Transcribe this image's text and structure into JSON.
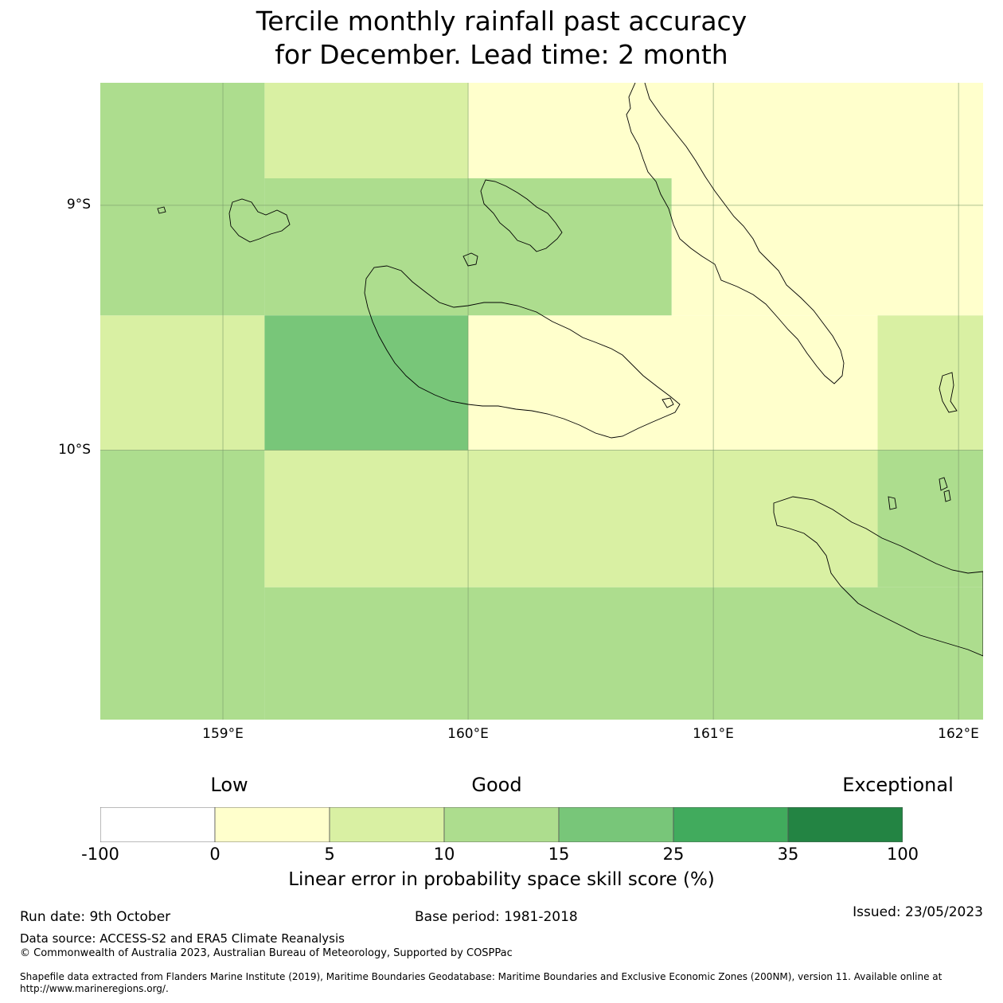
{
  "title": {
    "line1": "Tercile monthly rainfall past accuracy",
    "line2": "for December. Lead time: 2 month"
  },
  "map": {
    "lat_range": [
      -8.5,
      -11.1
    ],
    "lon_range": [
      158.5,
      162.1
    ],
    "lat_ticks": [
      {
        "value": -9,
        "label": "9°S"
      },
      {
        "value": -10,
        "label": "10°S"
      }
    ],
    "lon_ticks": [
      {
        "value": 159,
        "label": "159°E"
      },
      {
        "value": 160,
        "label": "160°E"
      },
      {
        "value": 161,
        "label": "161°E"
      },
      {
        "value": 162,
        "label": "162°E"
      }
    ],
    "cells": [
      {
        "lon0": 158.5,
        "lon1": 159.17,
        "lat0": -8.5,
        "lat1": -9.45,
        "color": "#addd8e",
        "category": "10-15"
      },
      {
        "lon0": 159.17,
        "lon1": 160.0,
        "lat0": -8.5,
        "lat1": -8.89,
        "color": "#d9f0a3",
        "category": "5-10"
      },
      {
        "lon0": 160.0,
        "lon1": 162.1,
        "lat0": -8.5,
        "lat1": -8.89,
        "color": "#ffffcc",
        "category": "0-5"
      },
      {
        "lon0": 159.17,
        "lon1": 160.83,
        "lat0": -8.89,
        "lat1": -9.45,
        "color": "#addd8e",
        "category": "10-15"
      },
      {
        "lon0": 160.83,
        "lon1": 162.1,
        "lat0": -8.89,
        "lat1": -9.45,
        "color": "#ffffcc",
        "category": "0-5"
      },
      {
        "lon0": 158.5,
        "lon1": 159.17,
        "lat0": -9.45,
        "lat1": -10.0,
        "color": "#d9f0a3",
        "category": "5-10"
      },
      {
        "lon0": 159.17,
        "lon1": 160.0,
        "lat0": -9.45,
        "lat1": -10.0,
        "color": "#78c679",
        "category": "15-25"
      },
      {
        "lon0": 160.0,
        "lon1": 161.67,
        "lat0": -9.45,
        "lat1": -10.0,
        "color": "#ffffcc",
        "category": "0-5"
      },
      {
        "lon0": 161.67,
        "lon1": 162.1,
        "lat0": -9.45,
        "lat1": -10.0,
        "color": "#d9f0a3",
        "category": "5-10"
      },
      {
        "lon0": 158.5,
        "lon1": 159.17,
        "lat0": -10.0,
        "lat1": -11.1,
        "color": "#addd8e",
        "category": "10-15"
      },
      {
        "lon0": 159.17,
        "lon1": 161.67,
        "lat0": -10.0,
        "lat1": -10.56,
        "color": "#d9f0a3",
        "category": "5-10"
      },
      {
        "lon0": 161.67,
        "lon1": 162.1,
        "lat0": -10.0,
        "lat1": -10.56,
        "color": "#addd8e",
        "category": "10-15"
      },
      {
        "lon0": 159.17,
        "lon1": 162.1,
        "lat0": -10.56,
        "lat1": -11.1,
        "color": "#addd8e",
        "category": "10-15"
      }
    ]
  },
  "legend": {
    "category_labels": [
      {
        "text": "Low",
        "value": 2.5
      },
      {
        "text": "Good",
        "value": 10
      },
      {
        "text": "Exceptional",
        "value": 60
      }
    ],
    "bins": [
      {
        "from": -100,
        "to": 0,
        "color": "#ffffff"
      },
      {
        "from": 0,
        "to": 5,
        "color": "#ffffcc"
      },
      {
        "from": 5,
        "to": 10,
        "color": "#d9f0a3"
      },
      {
        "from": 10,
        "to": 15,
        "color": "#addd8e"
      },
      {
        "from": 15,
        "to": 25,
        "color": "#78c679"
      },
      {
        "from": 25,
        "to": 35,
        "color": "#41ab5d"
      },
      {
        "from": 35,
        "to": 100,
        "color": "#238443"
      }
    ],
    "tick_labels": [
      "-100",
      "0",
      "5",
      "10",
      "15",
      "25",
      "35",
      "100"
    ],
    "title": "Linear error in probability space skill score (%)"
  },
  "footer": {
    "run_date": "Run date: 9th October",
    "base_period": "Base period: 1981-2018",
    "issued": "Issued: 23/05/2023",
    "data_source": "Data source: ACCESS-S2 and ERA5 Climate Reanalysis",
    "copyright": "© Commonwealth of Australia 2023, Australian Bureau of Meteorology, Supported by COSPPac",
    "shapefile": "Shapefile data extracted from Flanders Marine Institute (2019), Maritime Boundaries Geodatabase: Maritime Boundaries and Exclusive Economic Zones (200NM), version 11. Available online at http://www.marineregions.org/."
  }
}
